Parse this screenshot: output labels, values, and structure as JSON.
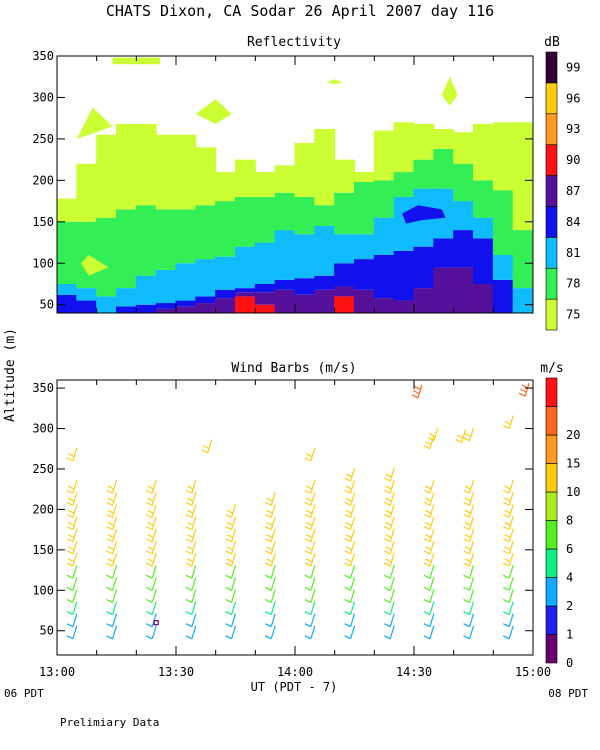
{
  "title": "CHATS Dixon, CA  Sodar  26 April 2007  day 116",
  "shared_ylabel": "Altitude (m)",
  "footer": {
    "note": "Prelimiary Data",
    "left_local": "06 PDT",
    "right_local": "08 PDT",
    "xlabel": "UT  (PDT - 7)"
  },
  "chart_data": [
    {
      "type": "heatmap",
      "title": "Reflectivity",
      "xlabel": "UT  (PDT - 7)",
      "ylabel": "Altitude (m)",
      "x_tick_labels": [
        "13:00",
        "13:30",
        "14:00",
        "14:30",
        "15:00"
      ],
      "x_tick_minutes": [
        0,
        30,
        60,
        90,
        120
      ],
      "xlim_minutes": [
        0,
        120
      ],
      "ylim": [
        40,
        350
      ],
      "y_ticks": [
        50,
        100,
        150,
        200,
        250,
        300,
        350
      ],
      "colorbar": {
        "label": "dB",
        "levels": [
          75,
          78,
          81,
          84,
          87,
          90,
          93,
          96,
          99
        ],
        "colors": [
          "#ccff33",
          "#33ee55",
          "#11bbff",
          "#1111ee",
          "#551199",
          "#ff1111",
          "#ff9922",
          "#ffcc11",
          "#330033"
        ]
      },
      "columns": [
        {
          "minute": 0,
          "bands": [
            [
              "#1111ee",
              40,
              62
            ],
            [
              "#11bbff",
              62,
              75
            ],
            [
              "#33ee55",
              75,
              150
            ],
            [
              "#ccff33",
              150,
              178
            ]
          ]
        },
        {
          "minute": 5,
          "bands": [
            [
              "#1111ee",
              40,
              55
            ],
            [
              "#11bbff",
              55,
              70
            ],
            [
              "#33ee55",
              70,
              150
            ],
            [
              "#ccff33",
              150,
              220
            ]
          ]
        },
        {
          "minute": 10,
          "bands": [
            [
              "#11bbff",
              40,
              60
            ],
            [
              "#33ee55",
              60,
              155
            ],
            [
              "#ccff33",
              155,
              255
            ]
          ]
        },
        {
          "minute": 15,
          "bands": [
            [
              "#1111ee",
              40,
              48
            ],
            [
              "#11bbff",
              48,
              70
            ],
            [
              "#33ee55",
              70,
              165
            ],
            [
              "#ccff33",
              165,
              268
            ]
          ]
        },
        {
          "minute": 20,
          "bands": [
            [
              "#1111ee",
              40,
              50
            ],
            [
              "#11bbff",
              50,
              85
            ],
            [
              "#33ee55",
              85,
              170
            ],
            [
              "#ccff33",
              170,
              268
            ]
          ]
        },
        {
          "minute": 25,
          "bands": [
            [
              "#551199",
              40,
              45
            ],
            [
              "#1111ee",
              45,
              52
            ],
            [
              "#11bbff",
              52,
              92
            ],
            [
              "#33ee55",
              92,
              165
            ],
            [
              "#ccff33",
              165,
              255
            ]
          ]
        },
        {
          "minute": 30,
          "bands": [
            [
              "#551199",
              40,
              48
            ],
            [
              "#1111ee",
              48,
              55
            ],
            [
              "#11bbff",
              55,
              100
            ],
            [
              "#33ee55",
              100,
              165
            ],
            [
              "#ccff33",
              165,
              255
            ]
          ]
        },
        {
          "minute": 35,
          "bands": [
            [
              "#551199",
              40,
              52
            ],
            [
              "#1111ee",
              52,
              60
            ],
            [
              "#11bbff",
              60,
              105
            ],
            [
              "#33ee55",
              105,
              170
            ],
            [
              "#ccff33",
              170,
              240
            ]
          ]
        },
        {
          "minute": 40,
          "bands": [
            [
              "#551199",
              40,
              58
            ],
            [
              "#1111ee",
              58,
              68
            ],
            [
              "#11bbff",
              68,
              108
            ],
            [
              "#33ee55",
              108,
              175
            ],
            [
              "#ccff33",
              175,
              210
            ]
          ]
        },
        {
          "minute": 45,
          "bands": [
            [
              "#ff1111",
              40,
              60
            ],
            [
              "#551199",
              60,
              65
            ],
            [
              "#1111ee",
              65,
              70
            ],
            [
              "#11bbff",
              70,
              120
            ],
            [
              "#33ee55",
              120,
              180
            ],
            [
              "#ccff33",
              180,
              225
            ]
          ]
        },
        {
          "minute": 50,
          "bands": [
            [
              "#ff1111",
              40,
              50
            ],
            [
              "#551199",
              50,
              65
            ],
            [
              "#1111ee",
              65,
              75
            ],
            [
              "#11bbff",
              75,
              125
            ],
            [
              "#33ee55",
              125,
              180
            ],
            [
              "#ccff33",
              180,
              210
            ]
          ]
        },
        {
          "minute": 55,
          "bands": [
            [
              "#551199",
              40,
              68
            ],
            [
              "#1111ee",
              68,
              80
            ],
            [
              "#11bbff",
              80,
              140
            ],
            [
              "#33ee55",
              140,
              185
            ],
            [
              "#ccff33",
              185,
              218
            ]
          ]
        },
        {
          "minute": 60,
          "bands": [
            [
              "#551199",
              40,
              62
            ],
            [
              "#1111ee",
              62,
              82
            ],
            [
              "#11bbff",
              82,
              135
            ],
            [
              "#33ee55",
              135,
              180
            ],
            [
              "#ccff33",
              180,
              245
            ]
          ]
        },
        {
          "minute": 65,
          "bands": [
            [
              "#551199",
              40,
              68
            ],
            [
              "#1111ee",
              68,
              85
            ],
            [
              "#11bbff",
              85,
              145
            ],
            [
              "#33ee55",
              145,
              170
            ],
            [
              "#ccff33",
              170,
              262
            ]
          ]
        },
        {
          "minute": 70,
          "bands": [
            [
              "#ff1111",
              40,
              60
            ],
            [
              "#551199",
              60,
              72
            ],
            [
              "#1111ee",
              72,
              100
            ],
            [
              "#11bbff",
              100,
              135
            ],
            [
              "#33ee55",
              135,
              185
            ],
            [
              "#ccff33",
              185,
              225
            ]
          ]
        },
        {
          "minute": 75,
          "bands": [
            [
              "#551199",
              40,
              68
            ],
            [
              "#1111ee",
              68,
              105
            ],
            [
              "#11bbff",
              105,
              135
            ],
            [
              "#33ee55",
              135,
              198
            ],
            [
              "#ccff33",
              198,
              210
            ]
          ]
        },
        {
          "minute": 80,
          "bands": [
            [
              "#551199",
              40,
              58
            ],
            [
              "#1111ee",
              58,
              110
            ],
            [
              "#11bbff",
              110,
              155
            ],
            [
              "#33ee55",
              155,
              200
            ],
            [
              "#ccff33",
              200,
              260
            ]
          ]
        },
        {
          "minute": 85,
          "bands": [
            [
              "#551199",
              40,
              55
            ],
            [
              "#1111ee",
              55,
              115
            ],
            [
              "#11bbff",
              115,
              180
            ],
            [
              "#33ee55",
              180,
              210
            ],
            [
              "#ccff33",
              210,
              270
            ]
          ]
        },
        {
          "minute": 90,
          "bands": [
            [
              "#551199",
              40,
              70
            ],
            [
              "#1111ee",
              70,
              120
            ],
            [
              "#11bbff",
              120,
              190
            ],
            [
              "#33ee55",
              190,
              225
            ],
            [
              "#ccff33",
              225,
              268
            ]
          ]
        },
        {
          "minute": 95,
          "bands": [
            [
              "#551199",
              40,
              95
            ],
            [
              "#1111ee",
              95,
              130
            ],
            [
              "#11bbff",
              130,
              190
            ],
            [
              "#33ee55",
              190,
              238
            ],
            [
              "#ccff33",
              238,
              262
            ]
          ]
        },
        {
          "minute": 100,
          "bands": [
            [
              "#551199",
              40,
              95
            ],
            [
              "#1111ee",
              95,
              140
            ],
            [
              "#11bbff",
              140,
              175
            ],
            [
              "#33ee55",
              175,
              220
            ],
            [
              "#ccff33",
              220,
              258
            ]
          ]
        },
        {
          "minute": 105,
          "bands": [
            [
              "#551199",
              40,
              75
            ],
            [
              "#1111ee",
              75,
              130
            ],
            [
              "#11bbff",
              130,
              155
            ],
            [
              "#33ee55",
              155,
              200
            ],
            [
              "#ccff33",
              200,
              268
            ]
          ]
        },
        {
          "minute": 110,
          "bands": [
            [
              "#1111ee",
              40,
              80
            ],
            [
              "#11bbff",
              80,
              110
            ],
            [
              "#33ee55",
              110,
              188
            ],
            [
              "#ccff33",
              188,
              270
            ]
          ]
        },
        {
          "minute": 115,
          "bands": [
            [
              "#11bbff",
              40,
              70
            ],
            [
              "#33ee55",
              70,
              140
            ],
            [
              "#ccff33",
              140,
              270
            ]
          ]
        }
      ],
      "patches": [
        {
          "color": "#ccff33",
          "points": [
            [
              5,
              250
            ],
            [
              9,
              288
            ],
            [
              14,
              265
            ]
          ]
        },
        {
          "color": "#ccff33",
          "points": [
            [
              6,
              100
            ],
            [
              8,
              110
            ],
            [
              13,
              95
            ],
            [
              8,
              85
            ]
          ]
        },
        {
          "color": "#ccff33",
          "points": [
            [
              14,
              340
            ],
            [
              14,
              348
            ],
            [
              26,
              348
            ],
            [
              26,
              340
            ]
          ]
        },
        {
          "color": "#ccff33",
          "points": [
            [
              35,
              280
            ],
            [
              40,
              298
            ],
            [
              44,
              280
            ],
            [
              40,
              268
            ]
          ]
        },
        {
          "color": "#ccff33",
          "points": [
            [
              68,
              318
            ],
            [
              70,
              322
            ],
            [
              72,
              318
            ],
            [
              70,
              316
            ]
          ]
        },
        {
          "color": "#ccff33",
          "points": [
            [
              97,
              303
            ],
            [
              99,
              325
            ],
            [
              101,
              303
            ],
            [
              99,
              290
            ]
          ]
        },
        {
          "color": "#1111ee",
          "points": [
            [
              87,
              160
            ],
            [
              91,
              170
            ],
            [
              97,
              165
            ],
            [
              98,
              155
            ],
            [
              92,
              152
            ],
            [
              88,
              148
            ]
          ]
        }
      ]
    },
    {
      "type": "scatter",
      "title": "Wind Barbs (m/s)",
      "xlabel": "UT  (PDT - 7)",
      "ylabel": "Altitude (m)",
      "x_tick_labels": [
        "13:00",
        "13:30",
        "14:00",
        "14:30",
        "15:00"
      ],
      "x_tick_minutes": [
        0,
        30,
        60,
        90,
        120
      ],
      "xlim_minutes": [
        0,
        120
      ],
      "ylim": [
        20,
        360
      ],
      "y_ticks": [
        50,
        100,
        150,
        200,
        250,
        300,
        350
      ],
      "colorbar": {
        "label": "m/s",
        "levels": [
          0,
          1,
          2,
          4,
          6,
          8,
          10,
          15,
          20
        ],
        "colors": [
          "#6a0070",
          "#2020ee",
          "#11aaff",
          "#11ee88",
          "#55ee22",
          "#aaee22",
          "#ffcc11",
          "#ff9922",
          "#ff6622",
          "#ff1111"
        ]
      },
      "barb_columns_minutes": [
        4,
        14,
        24,
        34,
        44,
        54,
        64,
        74,
        84,
        94,
        104,
        114
      ],
      "barb_levels": [
        40,
        55,
        70,
        85,
        100,
        115,
        130,
        145,
        160,
        175,
        190,
        205,
        220
      ],
      "column_top_altitudes": [
        260,
        220,
        220,
        220,
        200,
        210,
        260,
        235,
        235,
        275,
        285,
        300
      ],
      "upper_barbs": [
        {
          "minute": 38,
          "altitude": 270,
          "speed": 10
        },
        {
          "minute": 95,
          "altitude": 285,
          "speed": 10
        },
        {
          "minute": 91,
          "altitude": 338,
          "speed": 20
        },
        {
          "minute": 102,
          "altitude": 283,
          "speed": 12
        },
        {
          "minute": 118,
          "altitude": 340,
          "speed": 20
        }
      ],
      "isolated_marks": [
        {
          "minute": 25,
          "altitude": 60,
          "speed": 0
        }
      ]
    }
  ]
}
